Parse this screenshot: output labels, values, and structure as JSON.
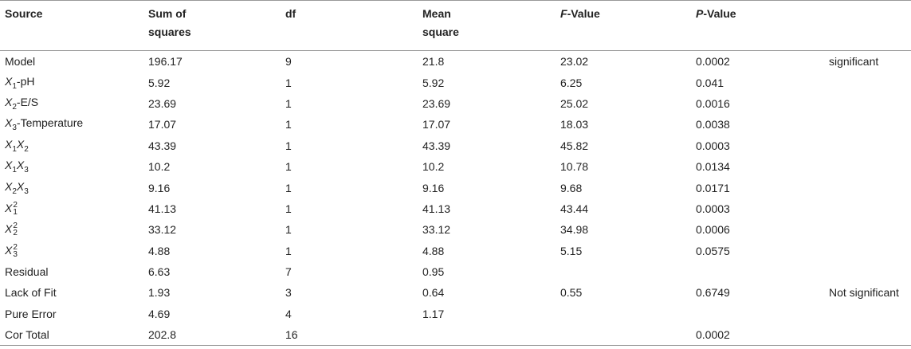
{
  "table": {
    "header": [
      "Source",
      "Sum of squares",
      "df",
      "Mean square",
      [
        {
          "text": "F",
          "style": "italic"
        },
        {
          "text": "-Value"
        }
      ],
      [
        {
          "text": "P",
          "style": "italic"
        },
        {
          "text": "-Value"
        }
      ],
      null
    ],
    "rows": [
      [
        "Model",
        "196.17",
        "9",
        "21.8",
        "23.02",
        "0.0002",
        "significant"
      ],
      [
        [
          {
            "text": "X",
            "style": "italic",
            "sub": "1"
          },
          {
            "text": "-pH"
          }
        ],
        "5.92",
        "1",
        "5.92",
        "6.25",
        "0.041",
        null
      ],
      [
        [
          {
            "text": "X",
            "style": "italic",
            "sub": "2"
          },
          {
            "text": "-E/S"
          }
        ],
        "23.69",
        "1",
        "23.69",
        "25.02",
        "0.0016",
        null
      ],
      [
        [
          {
            "text": "X",
            "style": "italic",
            "sub": "3"
          },
          {
            "text": "-Temperature"
          }
        ],
        "17.07",
        "1",
        "17.07",
        "18.03",
        "0.0038",
        null
      ],
      [
        [
          {
            "text": "X",
            "style": "italic",
            "sub": "1"
          },
          {
            "text": "X",
            "style": "italic",
            "sub": "2"
          }
        ],
        "43.39",
        "1",
        "43.39",
        "45.82",
        "0.0003",
        null
      ],
      [
        [
          {
            "text": "X",
            "style": "italic",
            "sub": "1"
          },
          {
            "text": "X",
            "style": "italic",
            "sub": "3"
          }
        ],
        "10.2",
        "1",
        "10.2",
        "10.78",
        "0.0134",
        null
      ],
      [
        [
          {
            "text": "X",
            "style": "italic",
            "sub": "2"
          },
          {
            "text": "X",
            "style": "italic",
            "sub": "3"
          }
        ],
        "9.16",
        "1",
        "9.16",
        "9.68",
        "0.0171",
        null
      ],
      [
        [
          {
            "text": "X",
            "style": "italic",
            "sub": "1",
            "sup": "2"
          }
        ],
        "41.13",
        "1",
        "41.13",
        "43.44",
        "0.0003",
        null
      ],
      [
        [
          {
            "text": "X",
            "style": "italic",
            "sub": "2",
            "sup": "2"
          }
        ],
        "33.12",
        "1",
        "33.12",
        "34.98",
        "0.0006",
        null
      ],
      [
        [
          {
            "text": "X",
            "style": "italic",
            "sub": "3",
            "sup": "2"
          }
        ],
        "4.88",
        "1",
        "4.88",
        "5.15",
        "0.0575",
        null
      ],
      [
        "Residual",
        "6.63",
        "7",
        "0.95",
        null,
        null,
        null
      ],
      [
        "Lack of Fit",
        "1.93",
        "3",
        "0.64",
        "0.55",
        "0.6749",
        "Not significant"
      ],
      [
        "Pure Error",
        "4.69",
        "4",
        "1.17",
        null,
        null,
        null
      ],
      [
        "Cor Total",
        "202.8",
        "16",
        null,
        null,
        "0.0002",
        null
      ]
    ]
  }
}
